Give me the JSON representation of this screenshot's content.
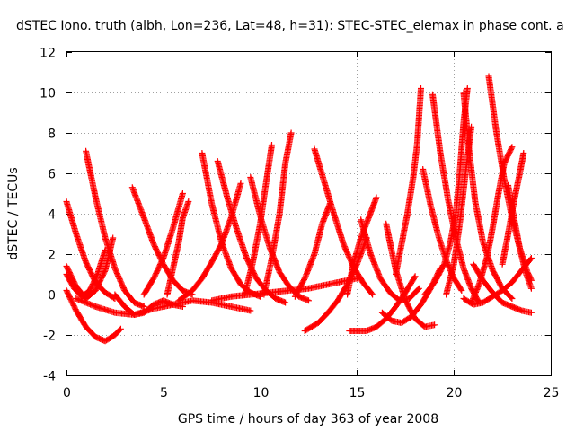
{
  "chart_data": {
    "type": "scatter",
    "title": "dSTEC Iono. truth (albh, Lon=236, Lat=48, h=31): STEC-STEC_elemax in phase cont. a",
    "xlabel": "GPS time / hours of day 363 of year 2008",
    "ylabel": "dSTEC  / TECUs",
    "xlim": [
      0,
      25
    ],
    "ylim": [
      -4,
      12
    ],
    "xticks": [
      0,
      5,
      10,
      15,
      20,
      25
    ],
    "yticks": [
      -4,
      -2,
      0,
      2,
      4,
      6,
      8,
      10,
      12
    ],
    "grid": true,
    "legend": "none",
    "marker": "plus",
    "color": "#ff0000",
    "series": [
      {
        "points": [
          [
            0.0,
            4.6
          ],
          [
            0.5,
            3.0
          ],
          [
            1.0,
            1.6
          ],
          [
            1.5,
            0.6
          ],
          [
            2.0,
            0.1
          ],
          [
            2.5,
            -0.2
          ]
        ]
      },
      {
        "points": [
          [
            0.0,
            1.4
          ],
          [
            0.5,
            0.4
          ],
          [
            1.0,
            -0.2
          ],
          [
            1.5,
            0.2
          ],
          [
            2.0,
            1.2
          ],
          [
            2.4,
            2.8
          ]
        ]
      },
      {
        "points": [
          [
            0.0,
            0.2
          ],
          [
            0.5,
            -0.8
          ],
          [
            1.0,
            -1.6
          ],
          [
            1.5,
            -2.1
          ],
          [
            2.0,
            -2.3
          ],
          [
            2.5,
            -2.0
          ],
          [
            2.8,
            -1.7
          ]
        ]
      },
      {
        "points": [
          [
            0.0,
            1.0
          ],
          [
            0.4,
            0.3
          ],
          [
            0.8,
            -0.1
          ],
          [
            1.2,
            0.2
          ],
          [
            1.6,
            1.0
          ],
          [
            2.0,
            2.2
          ]
        ]
      },
      {
        "points": [
          [
            1.0,
            7.1
          ],
          [
            1.5,
            4.8
          ],
          [
            2.0,
            2.8
          ],
          [
            2.5,
            1.3
          ],
          [
            3.0,
            0.2
          ],
          [
            3.5,
            -0.4
          ],
          [
            4.0,
            -0.6
          ]
        ]
      },
      {
        "points": [
          [
            3.4,
            5.3
          ],
          [
            4.0,
            3.8
          ],
          [
            4.5,
            2.5
          ],
          [
            5.0,
            1.5
          ],
          [
            5.5,
            0.7
          ],
          [
            6.0,
            0.2
          ],
          [
            6.5,
            0.0
          ]
        ]
      },
      {
        "points": [
          [
            2.5,
            0.0
          ],
          [
            3.0,
            -0.6
          ],
          [
            3.5,
            -1.0
          ],
          [
            4.0,
            -0.9
          ],
          [
            4.5,
            -0.5
          ],
          [
            5.0,
            -0.3
          ],
          [
            5.5,
            -0.5
          ],
          [
            6.0,
            -0.6
          ]
        ]
      },
      {
        "points": [
          [
            0.5,
            -0.2
          ],
          [
            1.5,
            -0.6
          ],
          [
            2.5,
            -0.9
          ],
          [
            3.5,
            -1.0
          ],
          [
            4.5,
            -0.7
          ],
          [
            5.5,
            -0.5
          ],
          [
            6.5,
            -0.3
          ],
          [
            7.5,
            -0.4
          ],
          [
            8.5,
            -0.6
          ],
          [
            9.5,
            -0.8
          ]
        ]
      },
      {
        "points": [
          [
            4.0,
            0.0
          ],
          [
            4.5,
            0.8
          ],
          [
            5.0,
            1.8
          ],
          [
            5.5,
            3.3
          ],
          [
            6.0,
            5.0
          ]
        ]
      },
      {
        "points": [
          [
            5.2,
            0.0
          ],
          [
            5.5,
            1.3
          ],
          [
            5.8,
            2.6
          ],
          [
            6.0,
            3.8
          ],
          [
            6.3,
            4.6
          ]
        ]
      },
      {
        "points": [
          [
            5.8,
            -0.3
          ],
          [
            6.5,
            0.2
          ],
          [
            7.0,
            0.8
          ],
          [
            7.5,
            1.6
          ],
          [
            8.0,
            2.5
          ],
          [
            8.5,
            3.8
          ],
          [
            9.0,
            5.5
          ]
        ]
      },
      {
        "points": [
          [
            7.0,
            7.0
          ],
          [
            7.5,
            4.5
          ],
          [
            8.0,
            2.6
          ],
          [
            8.5,
            1.3
          ],
          [
            9.0,
            0.5
          ],
          [
            9.5,
            0.1
          ],
          [
            10.0,
            -0.1
          ]
        ]
      },
      {
        "points": [
          [
            7.8,
            6.6
          ],
          [
            8.3,
            4.8
          ],
          [
            8.8,
            3.2
          ],
          [
            9.3,
            1.8
          ],
          [
            9.8,
            0.8
          ],
          [
            10.3,
            0.2
          ],
          [
            10.8,
            -0.2
          ],
          [
            11.3,
            -0.4
          ]
        ]
      },
      {
        "points": [
          [
            9.5,
            5.8
          ],
          [
            10.0,
            3.9
          ],
          [
            10.5,
            2.3
          ],
          [
            11.0,
            1.1
          ],
          [
            11.5,
            0.4
          ],
          [
            12.0,
            -0.1
          ],
          [
            12.5,
            -0.3
          ]
        ]
      },
      {
        "points": [
          [
            7.5,
            -0.3
          ],
          [
            8.5,
            -0.1
          ],
          [
            9.5,
            0.0
          ],
          [
            10.5,
            0.1
          ],
          [
            11.5,
            0.2
          ],
          [
            12.5,
            0.3
          ],
          [
            13.5,
            0.5
          ],
          [
            14.5,
            0.7
          ],
          [
            15.0,
            0.8
          ]
        ]
      },
      {
        "points": [
          [
            9.2,
            0.0
          ],
          [
            9.6,
            1.5
          ],
          [
            10.0,
            3.5
          ],
          [
            10.3,
            5.5
          ],
          [
            10.6,
            7.4
          ]
        ]
      },
      {
        "points": [
          [
            10.2,
            0.0
          ],
          [
            10.6,
            1.8
          ],
          [
            11.0,
            4.0
          ],
          [
            11.3,
            6.5
          ],
          [
            11.6,
            8.0
          ]
        ]
      },
      {
        "points": [
          [
            12.3,
            -1.8
          ],
          [
            13.0,
            -1.4
          ],
          [
            13.5,
            -0.9
          ],
          [
            14.0,
            -0.3
          ],
          [
            14.5,
            0.5
          ],
          [
            15.0,
            1.5
          ],
          [
            15.5,
            2.8
          ]
        ]
      },
      {
        "points": [
          [
            11.8,
            -0.1
          ],
          [
            12.3,
            0.8
          ],
          [
            12.8,
            2.0
          ],
          [
            13.2,
            3.5
          ],
          [
            13.6,
            4.5
          ]
        ]
      },
      {
        "points": [
          [
            12.8,
            7.2
          ],
          [
            13.3,
            5.6
          ],
          [
            13.8,
            4.0
          ],
          [
            14.3,
            2.5
          ],
          [
            14.8,
            1.4
          ],
          [
            15.3,
            0.6
          ],
          [
            15.8,
            0.0
          ]
        ]
      },
      {
        "points": [
          [
            14.6,
            -1.8
          ],
          [
            15.5,
            -1.8
          ],
          [
            16.0,
            -1.6
          ],
          [
            16.5,
            -1.2
          ],
          [
            17.0,
            -0.6
          ],
          [
            17.5,
            0.1
          ],
          [
            18.0,
            0.9
          ]
        ]
      },
      {
        "points": [
          [
            14.5,
            0.0
          ],
          [
            14.8,
            1.5
          ],
          [
            15.2,
            2.8
          ],
          [
            15.6,
            3.8
          ],
          [
            16.0,
            4.8
          ]
        ]
      },
      {
        "points": [
          [
            15.2,
            3.7
          ],
          [
            15.7,
            2.0
          ],
          [
            16.2,
            0.8
          ],
          [
            16.7,
            0.1
          ],
          [
            17.2,
            -0.3
          ],
          [
            17.7,
            -0.2
          ],
          [
            18.2,
            0.3
          ]
        ]
      },
      {
        "points": [
          [
            16.5,
            3.5
          ],
          [
            17.0,
            1.2
          ],
          [
            17.5,
            -0.3
          ],
          [
            18.0,
            -1.2
          ],
          [
            18.5,
            -1.6
          ],
          [
            19.0,
            -1.5
          ]
        ]
      },
      {
        "points": [
          [
            16.3,
            -0.9
          ],
          [
            16.8,
            -1.3
          ],
          [
            17.3,
            -1.4
          ],
          [
            17.8,
            -1.1
          ],
          [
            18.3,
            -0.5
          ],
          [
            18.8,
            0.3
          ],
          [
            19.3,
            1.3
          ]
        ]
      },
      {
        "points": [
          [
            17.0,
            1.0
          ],
          [
            17.3,
            2.5
          ],
          [
            17.6,
            4.0
          ],
          [
            17.9,
            5.8
          ],
          [
            18.1,
            7.4
          ],
          [
            18.3,
            10.2
          ]
        ]
      },
      {
        "points": [
          [
            18.4,
            6.2
          ],
          [
            18.8,
            4.4
          ],
          [
            19.2,
            2.9
          ],
          [
            19.6,
            1.7
          ],
          [
            20.0,
            0.8
          ],
          [
            20.4,
            0.2
          ]
        ]
      },
      {
        "points": [
          [
            18.9,
            9.9
          ],
          [
            19.3,
            7.0
          ],
          [
            19.7,
            4.7
          ],
          [
            20.1,
            2.8
          ],
          [
            20.5,
            1.3
          ],
          [
            20.9,
            0.3
          ],
          [
            21.3,
            -0.4
          ]
        ]
      },
      {
        "points": [
          [
            18.5,
            0.0
          ],
          [
            19.0,
            0.6
          ],
          [
            19.5,
            1.5
          ],
          [
            19.8,
            2.5
          ],
          [
            20.1,
            4.0
          ],
          [
            20.3,
            6.0
          ],
          [
            20.5,
            8.5
          ],
          [
            20.7,
            10.2
          ]
        ]
      },
      {
        "points": [
          [
            20.5,
            10.0
          ],
          [
            20.8,
            7.0
          ],
          [
            21.1,
            4.6
          ],
          [
            21.5,
            2.6
          ],
          [
            22.0,
            1.2
          ],
          [
            22.5,
            0.3
          ],
          [
            23.0,
            -0.2
          ]
        ]
      },
      {
        "points": [
          [
            19.6,
            0.0
          ],
          [
            20.0,
            1.5
          ],
          [
            20.3,
            3.5
          ],
          [
            20.6,
            6.0
          ],
          [
            20.9,
            8.3
          ]
        ]
      },
      {
        "points": [
          [
            20.9,
            -0.4
          ],
          [
            21.3,
            0.5
          ],
          [
            21.7,
            1.8
          ],
          [
            22.0,
            3.3
          ],
          [
            22.3,
            5.0
          ],
          [
            22.6,
            6.5
          ],
          [
            23.0,
            7.3
          ]
        ]
      },
      {
        "points": [
          [
            21.8,
            10.8
          ],
          [
            22.2,
            8.0
          ],
          [
            22.6,
            5.7
          ],
          [
            23.0,
            3.8
          ],
          [
            23.4,
            2.3
          ],
          [
            23.8,
            1.1
          ],
          [
            24.0,
            0.7
          ]
        ]
      },
      {
        "points": [
          [
            20.5,
            -0.2
          ],
          [
            21.0,
            -0.5
          ],
          [
            21.5,
            -0.4
          ],
          [
            22.0,
            -0.1
          ],
          [
            22.5,
            0.2
          ],
          [
            23.0,
            0.6
          ],
          [
            23.5,
            1.2
          ],
          [
            24.0,
            1.8
          ]
        ]
      },
      {
        "points": [
          [
            21.0,
            1.5
          ],
          [
            21.5,
            0.7
          ],
          [
            22.0,
            0.1
          ],
          [
            22.5,
            -0.4
          ],
          [
            23.0,
            -0.6
          ],
          [
            23.5,
            -0.8
          ],
          [
            24.0,
            -0.9
          ]
        ]
      },
      {
        "points": [
          [
            22.8,
            5.4
          ],
          [
            23.1,
            3.8
          ],
          [
            23.4,
            2.3
          ],
          [
            23.7,
            1.1
          ],
          [
            24.0,
            0.3
          ]
        ]
      },
      {
        "points": [
          [
            22.5,
            1.5
          ],
          [
            22.8,
            3.0
          ],
          [
            23.1,
            4.6
          ],
          [
            23.4,
            6.0
          ],
          [
            23.6,
            7.0
          ]
        ]
      }
    ]
  }
}
